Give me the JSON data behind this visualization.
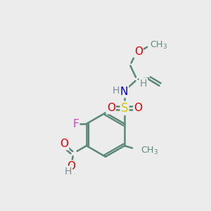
{
  "background_color": "#ececec",
  "bond_color": "#5a8878",
  "bond_width": 1.8,
  "atom_colors": {
    "C": "#5a8878",
    "H": "#7a9090",
    "N": "#0000dd",
    "O": "#dd0000",
    "S": "#cccc00",
    "F": "#cc44cc"
  },
  "figsize": [
    3.0,
    3.0
  ],
  "dpi": 100,
  "xlim": [
    0,
    10
  ],
  "ylim": [
    0,
    10
  ]
}
